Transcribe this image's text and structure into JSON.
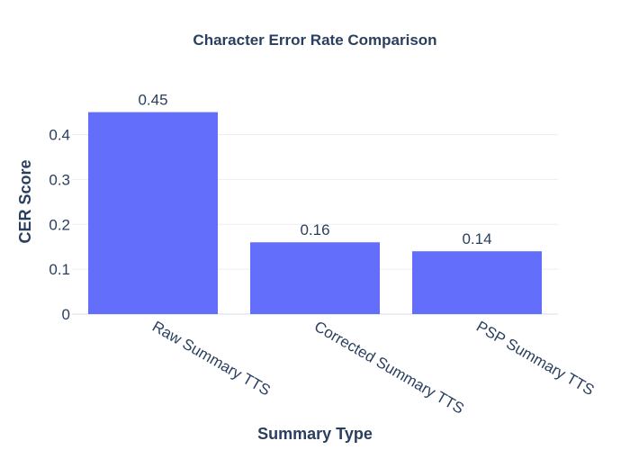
{
  "chart_data": {
    "type": "bar",
    "title": "Character Error Rate Comparison",
    "xlabel": "Summary Type",
    "ylabel": "CER Score",
    "categories": [
      "Raw Summary TTS",
      "Corrected Summary TTS",
      "PSP Summary TTS"
    ],
    "values": [
      0.45,
      0.16,
      0.14
    ],
    "data_labels": [
      "0.45",
      "0.16",
      "0.14"
    ],
    "yticks": [
      0,
      0.1,
      0.2,
      0.3,
      0.4
    ],
    "ytick_labels": [
      "0",
      "0.1",
      "0.2",
      "0.3",
      "0.4"
    ],
    "ylim": [
      0,
      0.4737
    ],
    "grid": true,
    "bar_color": "#636efa",
    "text_color": "#2a3f5f",
    "grid_color": "#ebeef3",
    "x_tick_rotation_deg": 30
  }
}
